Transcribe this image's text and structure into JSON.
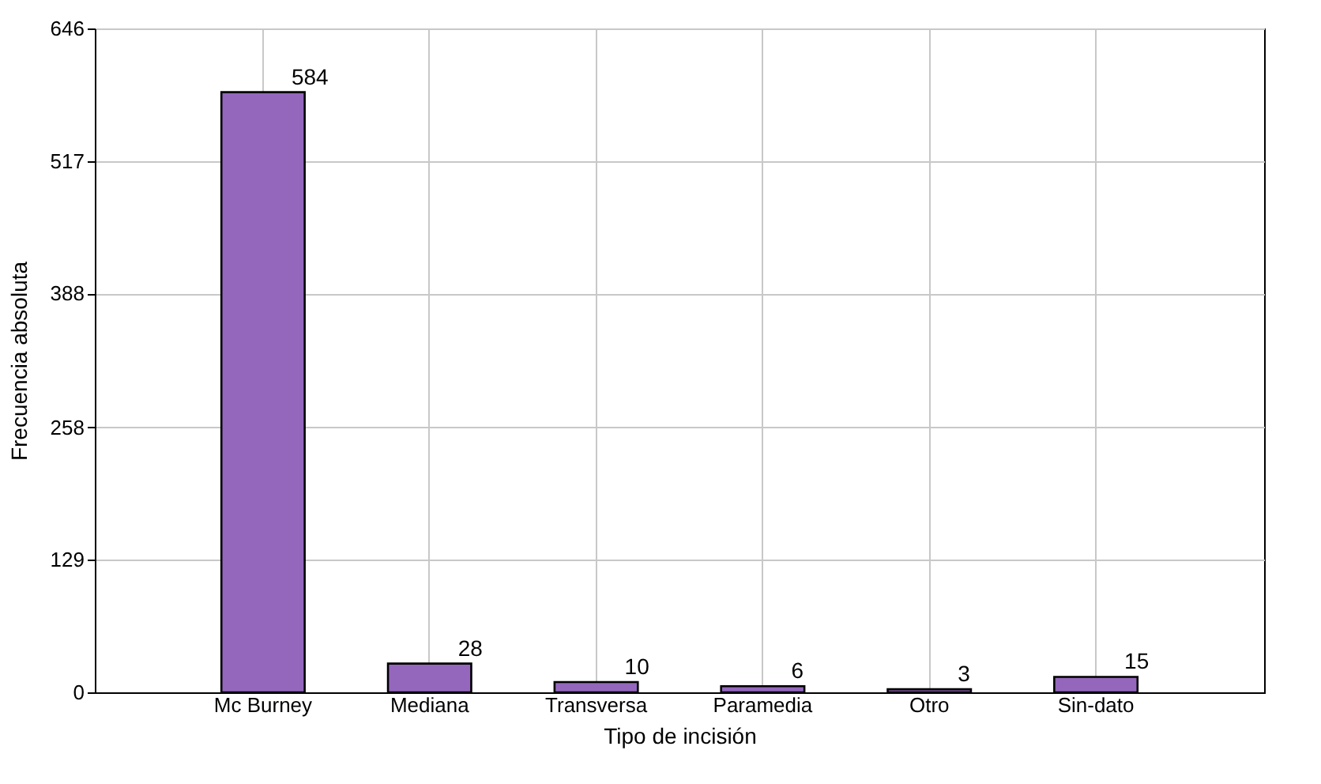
{
  "chart_data": {
    "type": "bar",
    "xlabel": "Tipo de incisión",
    "ylabel": "Frecuencia absoluta",
    "categories": [
      "Mc Burney",
      "Mediana",
      "Transversa",
      "Paramedia",
      "Otro",
      "Sin-dato"
    ],
    "values": [
      584,
      28,
      10,
      6,
      3,
      15
    ],
    "color": "#9467bd",
    "ylim": [
      0,
      646
    ],
    "yticks": [
      0,
      129,
      258,
      388,
      517,
      646
    ],
    "grid": true,
    "data_labels": true
  }
}
